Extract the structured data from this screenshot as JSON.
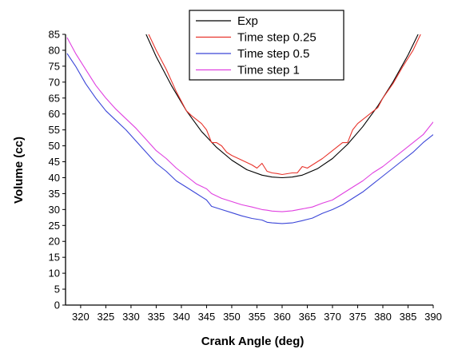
{
  "chart_data": {
    "type": "line",
    "xlabel": "Crank Angle (deg)",
    "ylabel": "Volume (cc)",
    "xlim": [
      317,
      390
    ],
    "ylim": [
      0,
      85
    ],
    "xticks": [
      320,
      325,
      330,
      335,
      340,
      345,
      350,
      355,
      360,
      365,
      370,
      375,
      380,
      385,
      390
    ],
    "yticks": [
      0,
      5,
      10,
      15,
      20,
      25,
      30,
      35,
      40,
      45,
      50,
      55,
      60,
      65,
      70,
      75,
      80,
      85
    ],
    "legend_position": "top-center",
    "grid": false,
    "series": [
      {
        "name": "Exp",
        "color": "#000000",
        "x": [
          333,
          335,
          338,
          341,
          344,
          347,
          350,
          353,
          356,
          358,
          360,
          362,
          364,
          367,
          370,
          373,
          376,
          379,
          382,
          385,
          387
        ],
        "values": [
          85,
          78,
          69,
          61,
          54.5,
          49.5,
          45.5,
          42.5,
          40.8,
          40.2,
          40,
          40.2,
          40.8,
          42.8,
          46,
          50.5,
          56,
          62.5,
          70,
          78.5,
          85
        ]
      },
      {
        "name": "Time step 0.25",
        "color": "#e8342c",
        "x": [
          333.5,
          335,
          337,
          339,
          341,
          342,
          344,
          345,
          346,
          347,
          348,
          349,
          350,
          352,
          354,
          355,
          356,
          357,
          358,
          359,
          360,
          362,
          363,
          364,
          365,
          366,
          368,
          370,
          372,
          373,
          374,
          375,
          377,
          379,
          380,
          382,
          384,
          386,
          387.5
        ],
        "values": [
          85,
          80,
          74,
          67,
          61,
          59.5,
          57,
          55,
          51,
          51,
          50,
          48,
          47,
          45.5,
          44,
          43,
          44.5,
          42,
          41.5,
          41.3,
          41,
          41.5,
          41.5,
          43.5,
          43,
          44,
          46,
          48.5,
          51,
          51,
          55,
          57,
          59.5,
          62,
          65,
          69.5,
          75,
          80,
          85
        ]
      },
      {
        "name": "Time step 0.5",
        "color": "#3b46d8",
        "x": [
          317.3,
          319,
          321,
          323,
          325,
          327,
          329,
          331,
          333,
          335,
          337,
          339,
          341,
          343,
          345,
          346,
          348,
          350,
          352,
          354,
          356,
          357,
          358,
          360,
          362,
          364,
          366,
          368,
          370,
          372,
          374,
          376,
          378,
          380,
          382,
          384,
          386,
          388,
          390
        ],
        "values": [
          79,
          75,
          69.5,
          65,
          61,
          58,
          55,
          51.5,
          48,
          44.5,
          42,
          39,
          37,
          35,
          33,
          31,
          30,
          29,
          28,
          27.2,
          26.7,
          26,
          25.8,
          25.6,
          25.8,
          26.5,
          27.3,
          28.8,
          30,
          31.5,
          33.5,
          35.5,
          38,
          40.5,
          43,
          45.5,
          48,
          51,
          53.5
        ]
      },
      {
        "name": "Time step 1",
        "color": "#e040e0",
        "x": [
          317.3,
          319,
          321,
          323,
          325,
          327,
          329,
          331,
          333,
          335,
          337,
          339,
          341,
          343,
          345,
          346,
          348,
          350,
          352,
          354,
          356,
          357,
          358,
          360,
          362,
          364,
          366,
          368,
          370,
          372,
          374,
          376,
          378,
          380,
          382,
          384,
          386,
          388,
          390
        ],
        "values": [
          84,
          79,
          74,
          69,
          65,
          61.5,
          58.5,
          55.5,
          52,
          48.5,
          46,
          43,
          40.5,
          38,
          36.5,
          35,
          33.5,
          32.5,
          31.5,
          30.8,
          30,
          29.8,
          29.5,
          29.3,
          29.6,
          30.2,
          30.8,
          32,
          33,
          35,
          37,
          39,
          41.5,
          43.5,
          46,
          48.5,
          51,
          53.5,
          57.5
        ]
      }
    ]
  }
}
